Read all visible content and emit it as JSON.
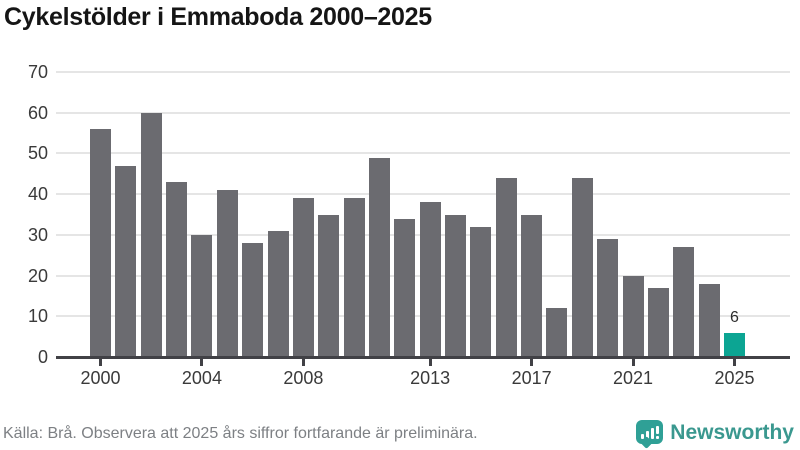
{
  "title": "Cykelstölder i Emmaboda 2000–2025",
  "source_note": "Källa: Brå. Observera att 2025 års siffror fortfarande är preliminära.",
  "brand": {
    "name": "Newsworthy"
  },
  "colors": {
    "bar": "#6b6b70",
    "highlight": "#0ca593",
    "brand_teal": "#2fa096",
    "grid": "#e5e5e5",
    "axis": "#414146"
  },
  "chart_data": {
    "type": "bar",
    "title": "Cykelstölder i Emmaboda 2000–2025",
    "x": [
      2000,
      2001,
      2002,
      2003,
      2004,
      2005,
      2006,
      2007,
      2008,
      2009,
      2010,
      2011,
      2012,
      2013,
      2014,
      2015,
      2016,
      2017,
      2018,
      2019,
      2020,
      2021,
      2022,
      2023,
      2024,
      2025
    ],
    "values": [
      56,
      47,
      60,
      43,
      30,
      41,
      28,
      31,
      39,
      35,
      39,
      49,
      34,
      38,
      35,
      32,
      44,
      35,
      12,
      44,
      29,
      20,
      17,
      27,
      18,
      6
    ],
    "bar_color": "#6b6b70",
    "highlight": {
      "index": 25,
      "label": "6",
      "color": "#0ca593",
      "note": "preliminary"
    },
    "ylim": [
      0,
      70
    ],
    "yticks": [
      0,
      10,
      20,
      30,
      40,
      50,
      60,
      70
    ],
    "xticks": [
      {
        "label": "2000",
        "index": 0
      },
      {
        "label": "2004",
        "index": 4
      },
      {
        "label": "2008",
        "index": 8
      },
      {
        "label": "2013",
        "index": 13
      },
      {
        "label": "2017",
        "index": 17
      },
      {
        "label": "2021",
        "index": 21
      },
      {
        "label": "2025",
        "index": 25
      }
    ],
    "grid": true,
    "legend": "none",
    "xlabel": "",
    "ylabel": ""
  }
}
